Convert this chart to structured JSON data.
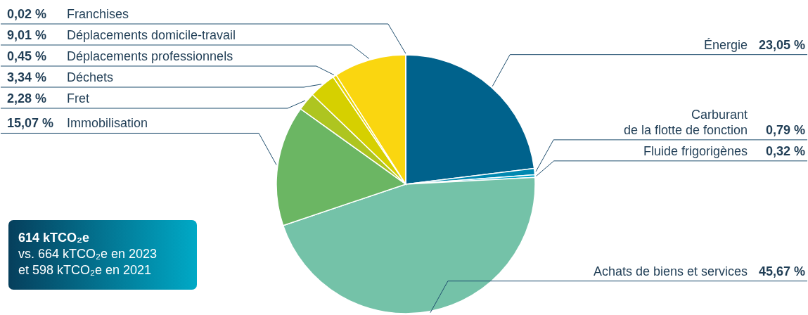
{
  "chart_data": {
    "type": "pie",
    "categories": [
      "Énergie",
      "Carburant\nde la flotte de fonction",
      "Fluide frigorigènes",
      "Achats de biens et services",
      "Immobilisation",
      "Fret",
      "Déchets",
      "Déplacements professionnels",
      "Déplacements domicile-travail",
      "Franchises"
    ],
    "values": [
      23.05,
      0.79,
      0.32,
      45.67,
      15.07,
      2.28,
      3.34,
      0.45,
      9.01,
      0.02
    ],
    "value_labels": [
      "23,05 %",
      "0,79 %",
      "0,32 %",
      "45,67 %",
      "15,07 %",
      "2,28 %",
      "3,34 %",
      "0,45 %",
      "9,01 %",
      "0,02 %"
    ],
    "colors": [
      "#00628c",
      "#0088b0",
      "#00a5c8",
      "#74c2a8",
      "#6bb663",
      "#aec520",
      "#d6d000",
      "#e9d400",
      "#fad610",
      "#f6b400"
    ],
    "annotations": [
      "614 kTCO₂e",
      "vs. 664 kTCO₂e en 2023",
      "et 598 kTCO₂e en 2021"
    ]
  }
}
